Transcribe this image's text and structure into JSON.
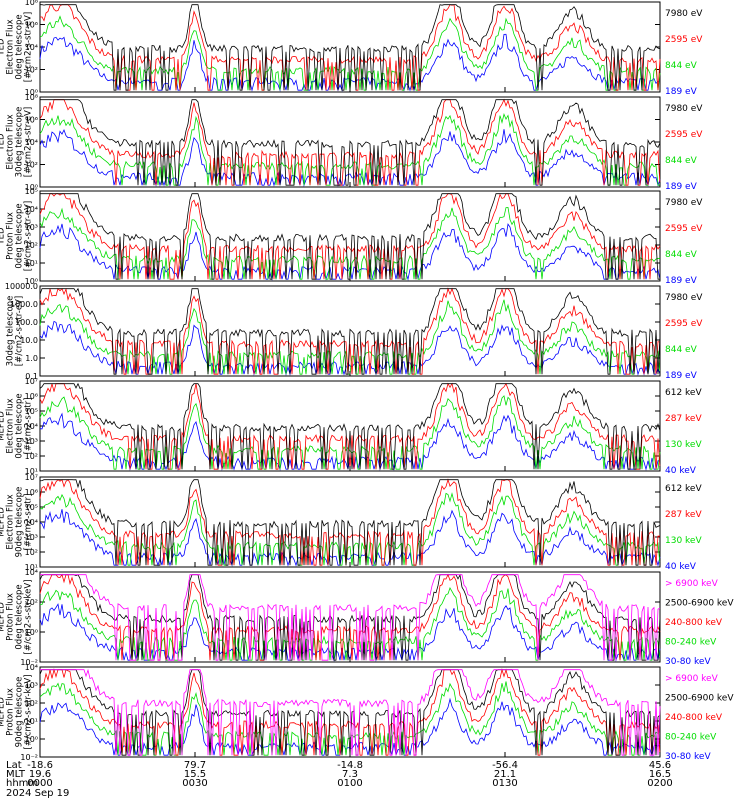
{
  "chart_data": [
    {
      "type": "line",
      "ylabel": [
        "TED",
        "Electron Flux",
        "0deg telescope",
        "[#/cm2-s-str-eV]"
      ],
      "scale": "log",
      "yticks": [
        "10⁰",
        "10²",
        "10⁴",
        "10⁶",
        "10⁸"
      ],
      "series": [
        {
          "name": "7980 eV",
          "color": "#000000"
        },
        {
          "name": "2595 eV",
          "color": "#ff0000"
        },
        {
          "name": "844 eV",
          "color": "#00dd00"
        },
        {
          "name": "189 eV",
          "color": "#0000ff"
        }
      ]
    },
    {
      "type": "line",
      "ylabel": [
        "TED",
        "Electron Flux",
        "30deg telescope",
        "[#/cm2-s-str-eV]"
      ],
      "scale": "log",
      "yticks": [
        "10⁰",
        "10²",
        "10⁴",
        "10⁶",
        "10⁸"
      ],
      "series": [
        {
          "name": "7980 eV",
          "color": "#000000"
        },
        {
          "name": "2595 eV",
          "color": "#ff0000"
        },
        {
          "name": "844 eV",
          "color": "#00dd00"
        },
        {
          "name": "189 eV",
          "color": "#0000ff"
        }
      ]
    },
    {
      "type": "line",
      "ylabel": [
        "TED",
        "Proton Flux",
        "0deg telescope",
        "[#/cm2-s-str-eV]"
      ],
      "scale": "log",
      "yticks": [
        "10⁰",
        "10¹",
        "10²",
        "10³",
        "10⁴",
        "10⁵"
      ],
      "series": [
        {
          "name": "7980 eV",
          "color": "#000000"
        },
        {
          "name": "2595 eV",
          "color": "#ff0000"
        },
        {
          "name": "844 eV",
          "color": "#00dd00"
        },
        {
          "name": "189 eV",
          "color": "#0000ff"
        }
      ]
    },
    {
      "type": "line",
      "ylabel": [
        "30deg telescope",
        "[#/cm2-s-str-eV]"
      ],
      "scale": "log",
      "yticks": [
        "0.1",
        "1.0",
        "10.0",
        "100.0",
        "1000.0",
        "10000.0"
      ],
      "series": [
        {
          "name": "7980 eV",
          "color": "#000000"
        },
        {
          "name": "2595 eV",
          "color": "#ff0000"
        },
        {
          "name": "844 eV",
          "color": "#00dd00"
        },
        {
          "name": "189 eV",
          "color": "#0000ff"
        }
      ]
    },
    {
      "type": "line",
      "ylabel": [
        "MEPED",
        "Electron Flux",
        "0deg telescope",
        "[#/cm2-s-str]"
      ],
      "scale": "log",
      "yticks": [
        "10¹",
        "10²",
        "10³",
        "10⁴",
        "10⁵",
        "10⁶",
        "10⁷"
      ],
      "series": [
        {
          "name": "612 keV",
          "color": "#000000"
        },
        {
          "name": "287 keV",
          "color": "#ff0000"
        },
        {
          "name": "130 keV",
          "color": "#00dd00"
        },
        {
          "name": "40 keV",
          "color": "#0000ff"
        }
      ]
    },
    {
      "type": "line",
      "ylabel": [
        "MEPED",
        "Electron Flux",
        "90deg telescope",
        "[#/cm2-s-str]"
      ],
      "scale": "log",
      "yticks": [
        "10¹",
        "10²",
        "10³",
        "10⁴",
        "10⁵",
        "10⁶",
        "10⁷"
      ],
      "series": [
        {
          "name": "612 keV",
          "color": "#000000"
        },
        {
          "name": "287 keV",
          "color": "#ff0000"
        },
        {
          "name": "130 keV",
          "color": "#00dd00"
        },
        {
          "name": "40 keV",
          "color": "#0000ff"
        }
      ]
    },
    {
      "type": "line",
      "ylabel": [
        "MEPED",
        "Proton Flux",
        "0deg telescope",
        "[#/cm2-s-str-keV]"
      ],
      "scale": "log",
      "yticks": [
        "10⁻²",
        "10⁰",
        "10²",
        "10⁴"
      ],
      "series": [
        {
          "name": "> 6900 keV",
          "color": "#ff00ff"
        },
        {
          "name": "2500-6900 keV",
          "color": "#000000"
        },
        {
          "name": "240-800 keV",
          "color": "#ff0000"
        },
        {
          "name": "80-240 keV",
          "color": "#00dd00"
        },
        {
          "name": "30-80 keV",
          "color": "#0000ff"
        }
      ]
    },
    {
      "type": "line",
      "ylabel": [
        "MEPED",
        "Proton Flux",
        "90deg telescope",
        "[#/cm2-s-str-keV]"
      ],
      "scale": "log",
      "yticks": [
        "10⁻²",
        "10⁰",
        "10¹",
        "10²",
        "10³",
        "10⁴"
      ],
      "series": [
        {
          "name": "> 6900 keV",
          "color": "#ff00ff"
        },
        {
          "name": "2500-6900 keV",
          "color": "#000000"
        },
        {
          "name": "240-800 keV",
          "color": "#ff0000"
        },
        {
          "name": "80-240 keV",
          "color": "#00dd00"
        },
        {
          "name": "30-80 keV",
          "color": "#0000ff"
        }
      ]
    }
  ],
  "xaxis": {
    "row_labels": [
      "Lat",
      "MLT",
      "hhmm",
      "2024 Sep 19"
    ],
    "ticks": [
      {
        "lat": "-18.6",
        "mlt": "19.6",
        "time": "0000"
      },
      {
        "lat": "79.7",
        "mlt": "15.5",
        "time": "0030"
      },
      {
        "lat": "-14.8",
        "mlt": "7.3",
        "time": "0100"
      },
      {
        "lat": "-56.4",
        "mlt": "21.1",
        "time": "0130"
      },
      {
        "lat": "45.6",
        "mlt": "16.5",
        "time": "0200"
      }
    ]
  }
}
